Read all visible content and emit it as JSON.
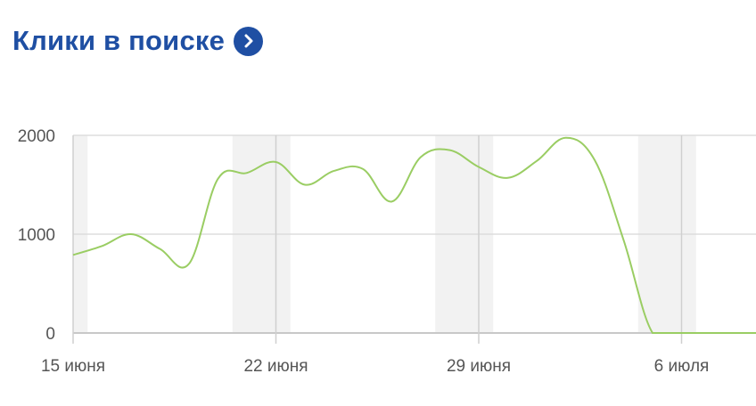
{
  "header": {
    "title": "Клики в поиске",
    "icon": "chevron-right-circle-icon"
  },
  "colors": {
    "title": "#1f4fa3",
    "line": "#9acd63",
    "weekend_band": "#f2f2f2",
    "grid": "#dddddd"
  },
  "chart_data": {
    "type": "line",
    "title": "",
    "xlabel": "",
    "ylabel": "",
    "ylim": [
      0,
      2000
    ],
    "yticks": [
      0,
      1000,
      2000
    ],
    "ytick_labels": [
      "0",
      "1000",
      "2000"
    ],
    "xticks": [
      "2014-06-15",
      "2014-06-22",
      "2014-06-29",
      "2014-07-06"
    ],
    "xtick_labels": [
      "15 июня",
      "22 июня",
      "29 июня",
      "6 июля"
    ],
    "grid": true,
    "weekend_bands": [
      [
        "2014-06-14",
        "2014-06-15"
      ],
      [
        "2014-06-21",
        "2014-06-22"
      ],
      [
        "2014-06-28",
        "2014-06-29"
      ],
      [
        "2014-07-05",
        "2014-07-06"
      ]
    ],
    "x": [
      "2014-06-15",
      "2014-06-16",
      "2014-06-17",
      "2014-06-18",
      "2014-06-19",
      "2014-06-20",
      "2014-06-21",
      "2014-06-22",
      "2014-06-23",
      "2014-06-24",
      "2014-06-25",
      "2014-06-26",
      "2014-06-27",
      "2014-06-28",
      "2014-06-29",
      "2014-06-30",
      "2014-07-01",
      "2014-07-02",
      "2014-07-03",
      "2014-07-04",
      "2014-07-05",
      "2014-07-06",
      "2014-07-07",
      "2014-07-08"
    ],
    "values": [
      790,
      880,
      1000,
      850,
      700,
      1560,
      1620,
      1730,
      1500,
      1640,
      1660,
      1330,
      1780,
      1850,
      1680,
      1570,
      1740,
      1975,
      1750,
      940,
      0,
      0,
      0,
      0
    ]
  }
}
